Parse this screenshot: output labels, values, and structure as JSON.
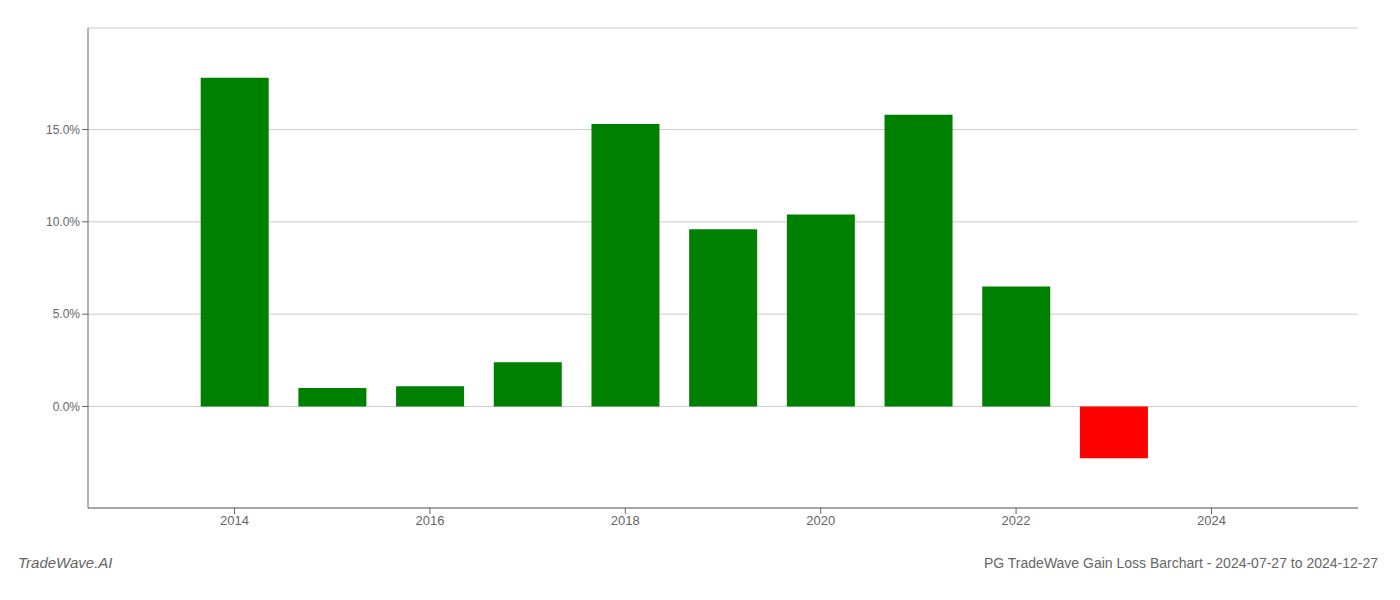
{
  "chart_data": {
    "type": "bar",
    "title": "PG TradeWave Gain Loss Barchart - 2024-07-27 to 2024-12-27",
    "annotations": [
      "TradeWave.AI"
    ],
    "x": [
      2014,
      2015,
      2016,
      2017,
      2018,
      2019,
      2020,
      2021,
      2022,
      2023
    ],
    "values": [
      0.178,
      0.01,
      0.011,
      0.024,
      0.153,
      0.096,
      0.104,
      0.158,
      0.065,
      -0.028
    ],
    "colors": [
      "#008000",
      "#008000",
      "#008000",
      "#008000",
      "#008000",
      "#008000",
      "#008000",
      "#008000",
      "#008000",
      "#ff0000"
    ],
    "xlim": [
      2012.5,
      2025.5
    ],
    "ylim": [
      -0.055,
      0.205
    ],
    "xticks": [
      2014,
      2016,
      2018,
      2020,
      2022,
      2024
    ],
    "yticks": [
      {
        "value": 0.0,
        "label": "0.0%"
      },
      {
        "value": 0.05,
        "label": "5.0%"
      },
      {
        "value": 0.1,
        "label": "10.0%"
      },
      {
        "value": 0.15,
        "label": "15.0%"
      }
    ],
    "grid": true
  }
}
